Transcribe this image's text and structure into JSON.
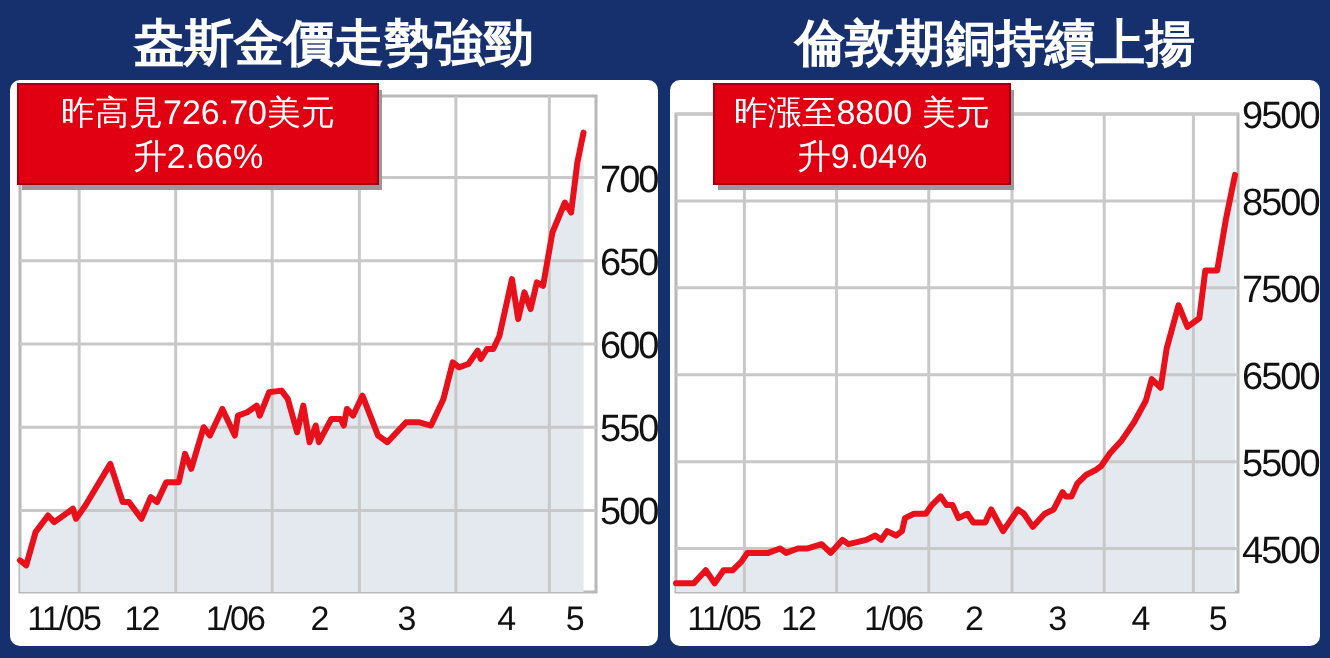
{
  "chart_data": [
    {
      "type": "area",
      "title": "盎斯金價走勢強勁",
      "annotations": [
        "昨高見726.70美元",
        "升2.66%"
      ],
      "grid": true,
      "xlim": [
        "2005-11-12",
        "2006-05-16"
      ],
      "ylim": [
        451,
        749
      ],
      "yticks": [
        500,
        550,
        600,
        650,
        700
      ],
      "xticks": [
        {
          "value": "2005-12-01",
          "label": null
        },
        {
          "value": "2006-01-01",
          "label": null
        },
        {
          "value": "2006-02-01",
          "label": null
        },
        {
          "value": "2006-03-01",
          "label": null
        },
        {
          "value": "2006-04-01",
          "label": null
        },
        {
          "value": "2006-05-01",
          "label": null
        },
        {
          "value": "2005-11-26",
          "label": "11/05"
        },
        {
          "value": "2005-12-21",
          "label": "12"
        },
        {
          "value": "2006-01-20",
          "label": "1/06"
        },
        {
          "value": "2006-02-16",
          "label": "2"
        },
        {
          "value": "2006-03-16",
          "label": "3"
        },
        {
          "value": "2006-04-17",
          "label": "4"
        },
        {
          "value": "2006-05-09",
          "label": "5"
        }
      ],
      "series": [
        {
          "color": "#e8101a",
          "x": [
            "2005-11-12",
            "2005-11-14",
            "2005-11-17",
            "2005-11-21",
            "2005-11-23",
            "2005-11-29",
            "2005-11-30",
            "2005-12-03",
            "2005-12-11",
            "2005-12-15",
            "2005-12-17",
            "2005-12-21",
            "2005-12-24",
            "2005-12-26",
            "2005-12-29",
            "2006-01-02",
            "2006-01-04",
            "2006-01-06",
            "2006-01-10",
            "2006-01-12",
            "2006-01-16",
            "2006-01-20",
            "2006-01-21",
            "2006-01-24",
            "2006-01-27",
            "2006-01-28",
            "2006-01-31",
            "2006-02-04",
            "2006-02-06",
            "2006-02-09",
            "2006-02-11",
            "2006-02-13",
            "2006-02-15",
            "2006-02-16",
            "2006-02-20",
            "2006-02-23",
            "2006-02-24",
            "2006-02-25",
            "2006-02-27",
            "2006-03-02",
            "2006-03-07",
            "2006-03-10",
            "2006-03-16",
            "2006-03-20",
            "2006-03-24",
            "2006-03-28",
            "2006-03-31",
            "2006-04-02",
            "2006-04-05",
            "2006-04-08",
            "2006-04-09",
            "2006-04-11",
            "2006-04-13",
            "2006-04-15",
            "2006-04-19",
            "2006-04-21",
            "2006-04-23",
            "2006-04-25",
            "2006-04-27",
            "2006-04-29",
            "2006-05-02",
            "2006-05-06",
            "2006-05-08",
            "2006-05-10",
            "2006-05-12"
          ],
          "values": [
            470,
            467,
            487,
            497,
            493,
            501,
            495,
            503,
            528,
            505,
            505,
            495,
            508,
            505,
            517,
            517,
            534,
            525,
            550,
            545,
            561,
            545,
            557,
            559,
            563,
            557,
            571,
            572,
            567,
            547,
            563,
            541,
            551,
            541,
            555,
            555,
            551,
            561,
            557,
            569,
            545,
            541,
            553,
            553,
            551,
            567,
            589,
            586,
            588,
            596,
            591,
            597,
            597,
            605,
            639,
            615,
            631,
            621,
            637,
            635,
            667,
            685,
            679,
            709,
            727
          ]
        }
      ]
    },
    {
      "type": "area",
      "title": "倫敦期銅持續上揚",
      "annotations": [
        "昨漲至8800 美元",
        "升9.04%"
      ],
      "grid": true,
      "xlim": [
        "2005-11-08",
        "2006-05-16"
      ],
      "ylim": [
        4000,
        9500
      ],
      "yticks": [
        4500,
        5500,
        6500,
        7500,
        8500,
        9500
      ],
      "xticks": [
        {
          "value": "2005-12-01",
          "label": null
        },
        {
          "value": "2006-01-01",
          "label": null
        },
        {
          "value": "2006-02-01",
          "label": null
        },
        {
          "value": "2006-03-01",
          "label": null
        },
        {
          "value": "2006-04-01",
          "label": null
        },
        {
          "value": "2006-05-01",
          "label": null
        },
        {
          "value": "2005-11-24",
          "label": "11/05"
        },
        {
          "value": "2005-12-19",
          "label": "12"
        },
        {
          "value": "2006-01-20",
          "label": "1/06"
        },
        {
          "value": "2006-02-16",
          "label": "2"
        },
        {
          "value": "2006-03-16",
          "label": "3"
        },
        {
          "value": "2006-04-13",
          "label": "4"
        },
        {
          "value": "2006-05-09",
          "label": "5"
        }
      ],
      "series": [
        {
          "color": "#e8101a",
          "x": [
            "2005-11-08",
            "2005-11-14",
            "2005-11-18",
            "2005-11-21",
            "2005-11-24",
            "2005-11-27",
            "2005-11-30",
            "2005-12-02",
            "2005-12-07",
            "2005-12-09",
            "2005-12-13",
            "2005-12-15",
            "2005-12-19",
            "2005-12-22",
            "2005-12-27",
            "2005-12-30",
            "2006-01-03",
            "2006-01-05",
            "2006-01-11",
            "2006-01-14",
            "2006-01-16",
            "2006-01-18",
            "2006-01-21",
            "2006-01-23",
            "2006-01-24",
            "2006-01-27",
            "2006-01-31",
            "2006-02-02",
            "2006-02-05",
            "2006-02-07",
            "2006-02-09",
            "2006-02-11",
            "2006-02-14",
            "2006-02-16",
            "2006-02-20",
            "2006-02-22",
            "2006-02-26",
            "2006-03-03",
            "2006-03-05",
            "2006-03-08",
            "2006-03-12",
            "2006-03-15",
            "2006-03-18",
            "2006-03-19",
            "2006-03-21",
            "2006-03-23",
            "2006-03-26",
            "2006-03-29",
            "2006-03-31",
            "2006-04-03",
            "2006-04-07",
            "2006-04-11",
            "2006-04-15",
            "2006-04-17",
            "2006-04-20",
            "2006-04-22",
            "2006-04-26",
            "2006-04-29",
            "2006-05-03",
            "2006-05-05",
            "2006-05-09",
            "2006-05-12",
            "2006-05-15"
          ],
          "values": [
            4100,
            4100,
            4250,
            4100,
            4250,
            4250,
            4350,
            4450,
            4450,
            4450,
            4500,
            4450,
            4500,
            4500,
            4550,
            4450,
            4600,
            4550,
            4600,
            4650,
            4600,
            4700,
            4650,
            4700,
            4850,
            4900,
            4900,
            5000,
            5100,
            5000,
            5000,
            4850,
            4900,
            4800,
            4800,
            4950,
            4700,
            4950,
            4900,
            4750,
            4900,
            4950,
            5150,
            5100,
            5100,
            5250,
            5350,
            5400,
            5450,
            5600,
            5750,
            5950,
            6200,
            6450,
            6350,
            6800,
            7300,
            7050,
            7150,
            7700,
            7700,
            8300,
            8800
          ]
        }
      ]
    }
  ]
}
